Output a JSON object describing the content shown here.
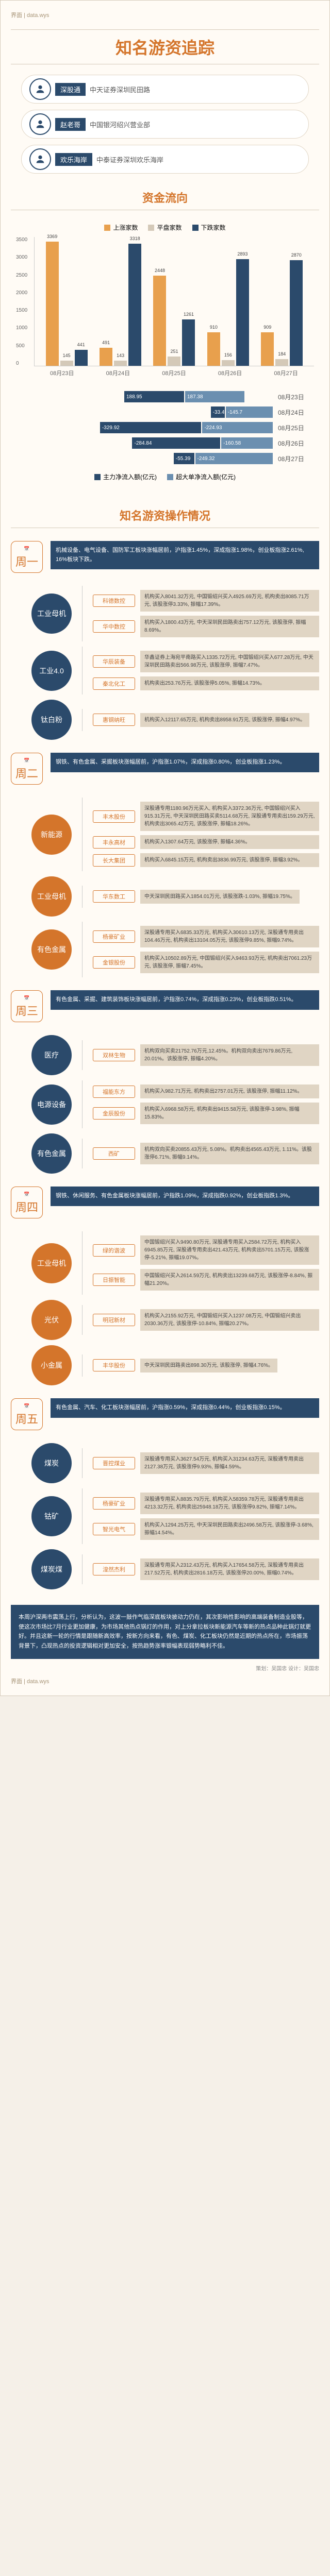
{
  "logos": {
    "left": "界面",
    "right": "data.wys"
  },
  "title": "知名游资追踪",
  "identities": [
    {
      "name": "深股通",
      "desc": "中天证券深圳民田路"
    },
    {
      "name": "赵老哥",
      "desc": "中国银河绍兴营业部"
    },
    {
      "name": "欢乐海岸",
      "desc": "中泰证券深圳欢乐海岸"
    }
  ],
  "section_funds": "资金流向",
  "chart1": {
    "legend": [
      "上涨家数",
      "平盘家数",
      "下跌家数"
    ],
    "colors": [
      "#e8a04d",
      "#d4c9b8",
      "#2b4a6b"
    ],
    "ymax": 3500,
    "ystep": 500,
    "dates": [
      "08月23日",
      "08月24日",
      "08月25日",
      "08月26日",
      "08月27日"
    ],
    "data": [
      [
        3369,
        145,
        441
      ],
      [
        491,
        143,
        3318
      ],
      [
        2448,
        251,
        1261
      ],
      [
        910,
        156,
        2893
      ],
      [
        909,
        184,
        2870
      ]
    ]
  },
  "chart2": {
    "legend": [
      "主力净流入额(亿元)",
      "超大单净流入额(亿元)"
    ],
    "colors": [
      "#2b4a6b",
      "#6b8fb0"
    ],
    "dates": [
      "08月23日",
      "08月24日",
      "08月25日",
      "08月26日",
      "08月27日"
    ],
    "data": [
      [
        188.95,
        187.38
      ],
      [
        -33.49,
        -145.7
      ],
      [
        -329.92,
        -224.93
      ],
      [
        -284.84,
        -160.58
      ],
      [
        -55.39,
        -249.32
      ]
    ]
  },
  "section_ops": "知名游资操作情况",
  "days": [
    {
      "label": "周一",
      "desc": "机械设备、电气设备、国防军工板块涨幅居前，沪指涨1.45%，深成指涨1.98%，创业板指涨2.61%, 16%板块下跌。",
      "nodes": [
        {
          "label": "工业母机",
          "color": "blue",
          "main": true,
          "children": [
            {
              "tag": "科德数控",
              "desc": "机构买入8041.32万元, 中国锻绍兴买入4925.69万元, 机构卖出8085.71万元, 该股涨停3.33%, 振幅17.39%。"
            },
            {
              "tag": "华中数控",
              "desc": "机构买入1800.43万元, 中天深圳民田路卖出757.12万元, 该股涨停, 振幅8.69%。"
            }
          ]
        },
        {
          "label": "工业4.0",
          "color": "blue",
          "main": true,
          "children": [
            {
              "tag": "华辰装备",
              "desc": "华鑫证券上海宛平南路买入1335.72万元, 中国锻绍兴买入677.28万元, 中天深圳民田路卖出566.98万元, 该股涨停, 振幅7.47%。"
            },
            {
              "tag": "秦北化工",
              "desc": "机构卖出253.76万元, 该股涨停5.05%, 振幅14.73%。"
            }
          ]
        },
        {
          "label": "钛白粉",
          "color": "blue",
          "main": true,
          "children": [
            {
              "tag": "惠钢纳旺",
              "desc": "机构买入12117.65万元, 机构卖出8958.91万元, 该股涨停, 振幅4.97%。"
            }
          ]
        }
      ]
    },
    {
      "label": "周二",
      "desc": "钢铁、有色金属、采掘板块涨幅居前，沪指涨1.07%，深成指涨0.80%，创业板指涨1.23%。",
      "nodes": [
        {
          "label": "新能源",
          "color": "orange",
          "main": true,
          "children": [
            {
              "tag": "丰木股份",
              "desc": "深股通专用1180.96万元买入, 机构买入3372.36万元, 中国锻绍兴买入915.31万元, 中天深圳民田路买卖5114.68万元, 深股通专用卖出159.29万元, 机构卖出3065.42万元, 该股涨停, 振幅18.26%。"
            },
            {
              "tag": "丰永高材",
              "desc": "机构买入1307.64万元, 该股涨停, 振幅4.36%。"
            },
            {
              "tag": "长大集团",
              "desc": "机构买入6845.15万元, 机构卖出3836.99万元, 该股涨停, 振幅3.92%。"
            }
          ]
        },
        {
          "label": "工业母机",
          "color": "orange",
          "main": true,
          "children": [
            {
              "tag": "华东数工",
              "desc": "中天深圳民田路买入1854.01万元, 该股涨跌-1.03%, 振幅19.75%。"
            }
          ]
        },
        {
          "label": "有色金属",
          "color": "orange",
          "main": true,
          "children": [
            {
              "tag": "杨豪矿业",
              "desc": "深股通专用买入6835.33万元, 机构买入30610.13万元, 深股通专用卖出104.46万元, 机构卖出13104.05万元, 该股涨停9.85%, 振幅9.74%。"
            },
            {
              "tag": "金银股份",
              "desc": "机构买入10502.89万元, 中国锻绍兴买入9463.93万元, 机构卖出7061.23万元, 该股涨停, 振幅7.45%。"
            }
          ]
        }
      ]
    },
    {
      "label": "周三",
      "desc": "有色金属、采掘、建筑装饰板块涨幅居前，沪指涨0.74%，深成指涨0.23%，创业板指跌0.51%。",
      "nodes": [
        {
          "label": "医疗",
          "color": "blue",
          "main": true,
          "children": [
            {
              "tag": "双林生物",
              "desc": "机构双向买卖21752.76万元,12.45%。机构双向卖出7679.86万元, 20.01%。该股涨停, 振幅4.20%。"
            }
          ]
        },
        {
          "label": "电源设备",
          "color": "blue",
          "main": true,
          "children": [
            {
              "tag": "福能东方",
              "desc": "机构买入982.71万元, 机构卖出2757.01万元, 该股涨停, 振幅11.12%。"
            },
            {
              "tag": "金辰股份",
              "desc": "机构买入6968.58万元, 机构卖出9415.58万元, 该股涨停-3.98%, 振幅15.83%。"
            }
          ]
        },
        {
          "label": "有色金属",
          "color": "blue",
          "main": true,
          "children": [
            {
              "tag": "西矿",
              "desc": "机构双向买卖20855.43万元, 5.08%。机构卖出4565.43万元, 1.11%。该股涨停6.71%, 振幅9.14%。"
            }
          ]
        }
      ]
    },
    {
      "label": "周四",
      "desc": "钢铁、休闲服务、有色金属板块涨幅居前，沪指跌1.09%，深成指跌0.92%，创业板指跌1.3%。",
      "nodes": [
        {
          "label": "工业母机",
          "color": "orange",
          "main": true,
          "children": [
            {
              "tag": "绿的谐波",
              "desc": "中国锻绍兴买入9490.80万元, 深股通专用买入2584.72万元, 机构买入6945.85万元, 深股通专用卖出421.43万元, 机构卖出5701.15万元, 该股涨停-5.21%, 振幅19.07%。"
            },
            {
              "tag": "日振智能",
              "desc": "中国锻绍兴买入2614.59万元, 机构卖出13239.68万元, 该股涨停-8.84%, 振幅21.20%。"
            }
          ]
        },
        {
          "label": "光伏",
          "color": "orange",
          "main": true,
          "children": [
            {
              "tag": "明冠新材",
              "desc": "机构买入2155.92万元, 中国锻绍兴买入1237.08万元, 中国锻绍兴卖出2030.36万元, 该股涨停-10.84%, 振幅20.27%。"
            }
          ]
        },
        {
          "label": "小金属",
          "color": "orange",
          "main": true,
          "children": [
            {
              "tag": "丰华股份",
              "desc": "中天深圳民田路卖出898.30万元, 该股涨停, 振幅4.76%。"
            }
          ]
        }
      ]
    },
    {
      "label": "周五",
      "desc": "有色金属、汽车、化工板块涨幅居前，沪指涨0.59%，深成指涨0.44%，创业板指涨0.15%。",
      "nodes": [
        {
          "label": "煤炭",
          "color": "blue",
          "main": true,
          "children": [
            {
              "tag": "晋控煤业",
              "desc": "深股通专用买入3627.54万元, 机构买入31234.63万元, 深股通专用卖出2127.38万元, 该股涨停9.93%, 振幅4.59%。"
            }
          ]
        },
        {
          "label": "钴矿",
          "color": "blue",
          "main": true,
          "children": [
            {
              "tag": "杨豪矿业",
              "desc": "深股通专用买入8835.79万元, 机构买入58359.78万元, 深股通专用卖出4213.32万元, 机构卖出25948.18万元, 该股涨停9.82%, 振幅7.14%。"
            },
            {
              "tag": "智光电气",
              "desc": "机构买入1294.25万元, 中天深圳民田路卖出2496.58万元, 该股涨停-3.68%, 振幅14.54%。"
            }
          ]
        },
        {
          "label": "煤炭煤",
          "color": "blue",
          "main": true,
          "children": [
            {
              "tag": "湟然杰利",
              "desc": "深股通专用买入2312.43万元, 机构买入17654.58万元, 深股通专用卖出217.52万元, 机构卖出2816.18万元, 该股涨停20.00%, 振幅0.74%。"
            }
          ]
        }
      ]
    }
  ],
  "footer": "本周沪深两市震荡上行，分析认为，这波一鼓作气临深底板块披动力仍在，其次影响性影响的高端装备制造业股等，使这次市场比7月行业更加健康，为市场其他热点锅灯的作用，对上分拿拉板块新能源汽车等新的热点品种此锅灯就更好。并且这新一轮的行情是跟随新高效率，按新方向来看，有色、煤炭、化工板块仍然是近期的热点所在，市场振荡背景下，凸现热点的投资逻辑相对更加安全，按热趋势涨率银幅表现弱势略利不佳。",
  "credits": "策划：吴国忠  设计：吴国忠"
}
